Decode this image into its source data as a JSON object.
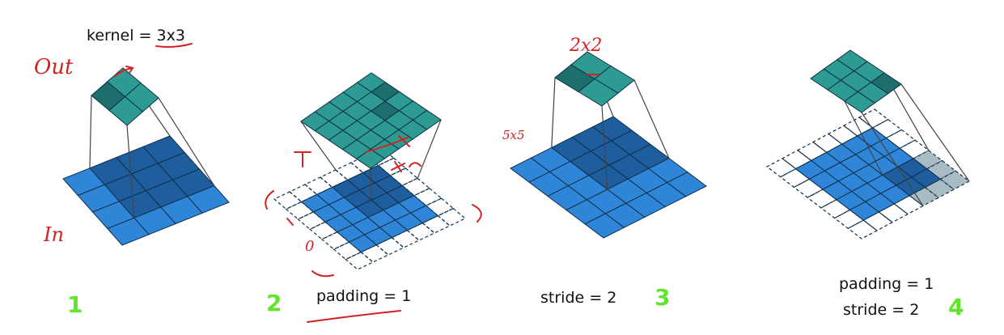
{
  "captions": {
    "kernel": "kernel = 3x3",
    "padding2": "padding = 1",
    "stride3": "stride = 2",
    "padding4": "padding = 1",
    "stride4": "stride = 2"
  },
  "numbers": [
    "1",
    "2",
    "3",
    "4"
  ],
  "annotations": {
    "out": "Out",
    "in": "In",
    "size_2x2": "2x2",
    "size_5x5": "5x5",
    "zero": "0"
  },
  "colors": {
    "input_fill": "#2f86d8",
    "input_dark": "#1e5e9e",
    "output_fill": "#2e9b93",
    "output_dark": "#1c6f6a",
    "padding_fill": "#a9bcc4",
    "grid_line": "#10304a",
    "annotation": "#cf2424",
    "step_number": "#5fe62a"
  },
  "panels": [
    {
      "input_size": 4,
      "output_size": 2,
      "padding": 0,
      "stride": 1
    },
    {
      "input_size": 5,
      "output_size": 5,
      "padding": 1,
      "stride": 1
    },
    {
      "input_size": 5,
      "output_size": 2,
      "padding": 0,
      "stride": 2
    },
    {
      "input_size": 5,
      "output_size": 3,
      "padding": 1,
      "stride": 2
    }
  ]
}
